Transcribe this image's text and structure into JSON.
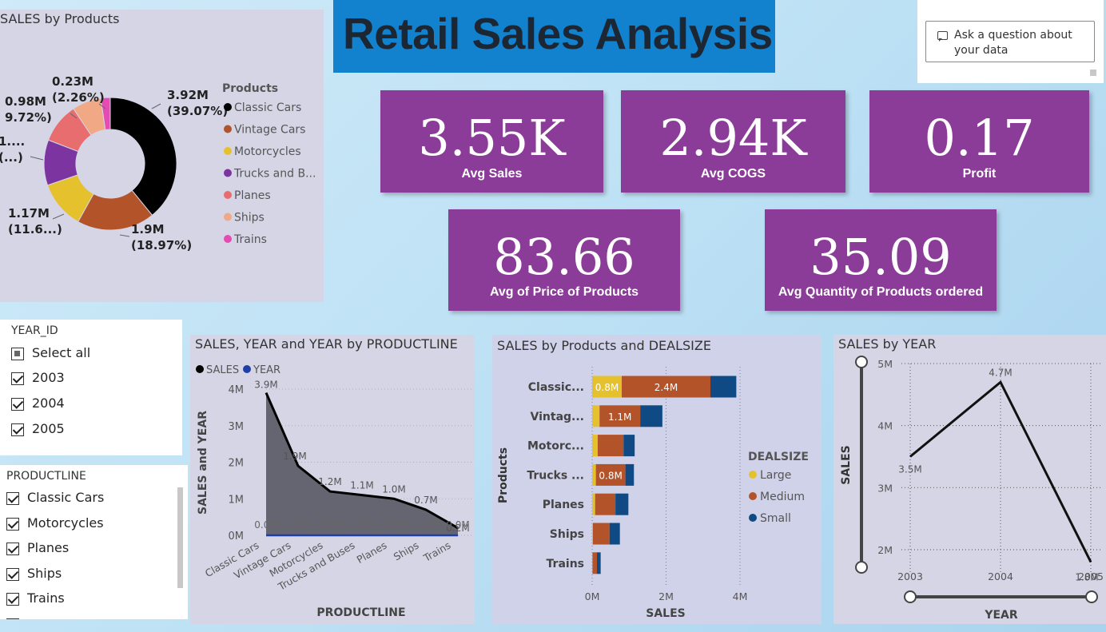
{
  "header": {
    "title": "Retail Sales Analysis"
  },
  "qa": {
    "icon": "chat-icon",
    "text": "Ask a question about your data"
  },
  "kpis": [
    {
      "value": "3.55K",
      "label": "Avg Sales"
    },
    {
      "value": "2.94K",
      "label": "Avg COGS"
    },
    {
      "value": "0.17",
      "label": "Profit"
    },
    {
      "value": "83.66",
      "label": "Avg of Price of Products"
    },
    {
      "value": "35.09",
      "label": "Avg Quantity of Products ordered"
    }
  ],
  "colors": {
    "header_bg": "#1282cf",
    "card_bg": "#8b3b98",
    "classic_cars": "#000000",
    "vintage_cars": "#b3532a",
    "motorcycles": "#e6c12e",
    "trucks_and_buses": "#7c35a0",
    "planes": "#e86d6f",
    "ships": "#f1a884",
    "trains": "#e44bb3",
    "large": "#e6c12e",
    "medium": "#b3532a",
    "small": "#0f4a84"
  },
  "slicers": {
    "year": {
      "title": "YEAR_ID",
      "items": [
        {
          "label": "Select all",
          "state": "partial"
        },
        {
          "label": "2003",
          "state": "checked"
        },
        {
          "label": "2004",
          "state": "checked"
        },
        {
          "label": "2005",
          "state": "checked"
        }
      ]
    },
    "productline": {
      "title": "PRODUCTLINE",
      "items": [
        {
          "label": "Classic Cars",
          "state": "checked"
        },
        {
          "label": "Motorcycles",
          "state": "checked"
        },
        {
          "label": "Planes",
          "state": "checked"
        },
        {
          "label": "Ships",
          "state": "checked"
        },
        {
          "label": "Trains",
          "state": "checked"
        }
      ]
    }
  },
  "chart_data": [
    {
      "type": "pie",
      "title": "SALES by Products",
      "legend_title": "Products",
      "legend_position": "right",
      "donut": true,
      "categories": [
        "Classic Cars",
        "Vintage Cars",
        "Motorcycles",
        "Trucks and B...",
        "Planes",
        "Ships",
        "Trains"
      ],
      "values": [
        3.92,
        1.9,
        1.17,
        1.11,
        0.98,
        0.71,
        0.23
      ],
      "unit": "M",
      "data_labels": [
        {
          "value": "3.92M",
          "pct": "(39.07%)"
        },
        {
          "value": "1.9M",
          "pct": "(18.97%)"
        },
        {
          "value": "1.17M",
          "pct": "(11.6...)"
        },
        {
          "value": "1....",
          "pct": "(...)"
        },
        {
          "value": "0.98M",
          "pct": "9.72%)"
        },
        {
          "value": "0.23M",
          "pct": "(2.26%)"
        }
      ]
    },
    {
      "type": "area",
      "title": "SALES, YEAR and YEAR by PRODUCTLINE",
      "legend": [
        "SALES",
        "YEAR"
      ],
      "legend_position": "top-left",
      "xlabel": "PRODUCTLINE",
      "ylabel": "SALES and YEAR",
      "ylim": [
        0,
        4
      ],
      "y_ticks": [
        "0M",
        "1M",
        "2M",
        "3M",
        "4M"
      ],
      "categories": [
        "Classic Cars",
        "Vintage Cars",
        "Motorcycles",
        "Trucks and Buses",
        "Planes",
        "Ships",
        "Trains"
      ],
      "series": [
        {
          "name": "SALES",
          "values": [
            3.9,
            1.9,
            1.2,
            1.1,
            1.0,
            0.7,
            0.2
          ],
          "labels": [
            "3.9M",
            "1.9M",
            "1.2M",
            "1.1M",
            "1.0M",
            "0.7M",
            "0.2M"
          ],
          "color": "#000000"
        },
        {
          "name": "YEAR",
          "values": [
            0,
            0,
            0,
            0,
            0,
            0,
            0
          ],
          "labels": [
            "0.0M",
            "0.0M",
            "0.0M",
            "0.0M",
            "0.0M",
            "0.0M",
            "0.0M"
          ],
          "color": "#1f3fa6"
        }
      ],
      "grid": true
    },
    {
      "type": "bar",
      "orientation": "horizontal",
      "stacked": true,
      "title": "SALES by Products and DEALSIZE",
      "legend_title": "DEALSIZE",
      "legend_position": "right",
      "xlabel": "SALES",
      "ylabel": "Products",
      "xlim": [
        0,
        4
      ],
      "x_ticks": [
        "0M",
        "2M",
        "4M"
      ],
      "categories": [
        "Classic...",
        "Vintag...",
        "Motorc...",
        "Trucks ...",
        "Planes",
        "Ships",
        "Trains"
      ],
      "series": [
        {
          "name": "Large",
          "values": [
            0.8,
            0.2,
            0.15,
            0.1,
            0.08,
            0.02,
            0.01
          ],
          "labels": [
            "0.8M",
            "",
            "",
            "",
            "",
            "",
            ""
          ]
        },
        {
          "name": "Medium",
          "values": [
            2.4,
            1.1,
            0.7,
            0.8,
            0.55,
            0.45,
            0.12
          ],
          "labels": [
            "2.4M",
            "1.1M",
            "",
            "0.8M",
            "",
            "",
            ""
          ]
        },
        {
          "name": "Small",
          "values": [
            0.7,
            0.6,
            0.3,
            0.23,
            0.35,
            0.28,
            0.1
          ],
          "labels": [
            "",
            "",
            "",
            "",
            "",
            "",
            ""
          ]
        }
      ],
      "grid": true
    },
    {
      "type": "line",
      "title": "SALES by YEAR",
      "xlabel": "YEAR",
      "ylabel": "SALES",
      "x": [
        2003,
        2004,
        2005
      ],
      "x_ticks": [
        "2003",
        "2004",
        "2005"
      ],
      "ylim": [
        1.6,
        5
      ],
      "y_ticks": [
        "2M",
        "3M",
        "4M",
        "5M"
      ],
      "series": [
        {
          "name": "SALES",
          "values": [
            3.5,
            4.7,
            1.8
          ],
          "labels": [
            "3.5M",
            "4.7M",
            "1.8M"
          ]
        }
      ],
      "grid": true
    }
  ]
}
